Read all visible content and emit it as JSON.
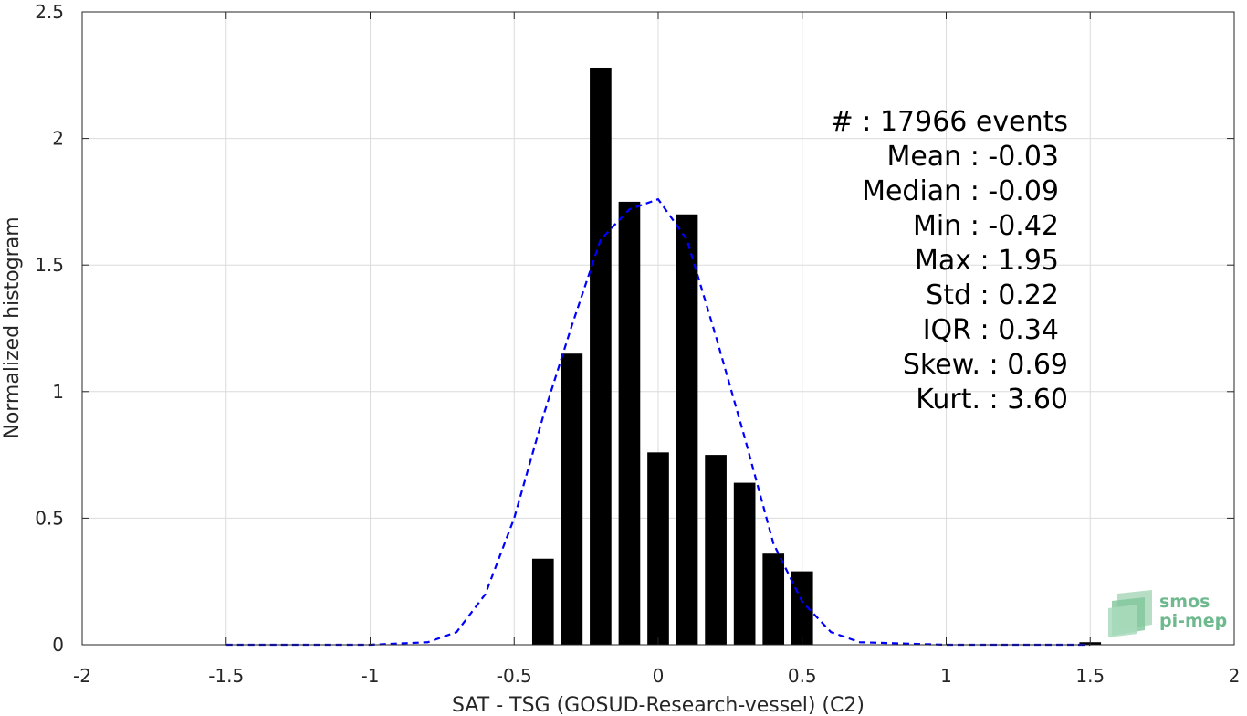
{
  "chart_data": {
    "type": "bar",
    "xlabel": "SAT - TSG (GOSUD-Research-vessel) (C2)",
    "ylabel": "Normalized histogram",
    "xlim": [
      -2,
      2
    ],
    "ylim": [
      0,
      2.5
    ],
    "xticks": [
      -2,
      -1.5,
      -1,
      -0.5,
      0,
      0.5,
      1,
      1.5,
      2
    ],
    "xtick_labels": [
      "-2",
      "-1.5",
      "-1",
      "-0.5",
      "0",
      "0.5",
      "1",
      "1.5",
      "2"
    ],
    "yticks": [
      0,
      0.5,
      1,
      1.5,
      2,
      2.5
    ],
    "ytick_labels": [
      "0",
      "0.5",
      "1",
      "1.5",
      "2",
      "2.5"
    ],
    "grid": true,
    "bar_color": "#000000",
    "bins": [
      {
        "x": -0.4,
        "value": 0.34
      },
      {
        "x": -0.3,
        "value": 1.15
      },
      {
        "x": -0.2,
        "value": 2.28
      },
      {
        "x": -0.1,
        "value": 1.75
      },
      {
        "x": 0.0,
        "value": 0.76
      },
      {
        "x": 0.1,
        "value": 1.7
      },
      {
        "x": 0.2,
        "value": 0.75
      },
      {
        "x": 0.3,
        "value": 0.64
      },
      {
        "x": 0.4,
        "value": 0.36
      },
      {
        "x": 0.5,
        "value": 0.29
      },
      {
        "x": 1.5,
        "value": 0.01
      }
    ],
    "fit_curve": {
      "style": "dashed",
      "color": "#0000ff",
      "points": [
        [
          -1.5,
          0.0
        ],
        [
          -1.0,
          0.0
        ],
        [
          -0.8,
          0.01
        ],
        [
          -0.7,
          0.05
        ],
        [
          -0.6,
          0.2
        ],
        [
          -0.5,
          0.5
        ],
        [
          -0.4,
          0.9
        ],
        [
          -0.3,
          1.26
        ],
        [
          -0.2,
          1.6
        ],
        [
          -0.1,
          1.72
        ],
        [
          0.0,
          1.76
        ],
        [
          0.1,
          1.6
        ],
        [
          0.2,
          1.22
        ],
        [
          0.3,
          0.82
        ],
        [
          0.4,
          0.4
        ],
        [
          0.5,
          0.17
        ],
        [
          0.6,
          0.05
        ],
        [
          0.7,
          0.01
        ],
        [
          1.0,
          0.0
        ],
        [
          1.5,
          0.0
        ]
      ]
    },
    "annotations": [
      "#  : 17966 events",
      "Mean : -0.03",
      "Median : -0.09",
      "Min : -0.42",
      "Max : 1.95",
      "Std : 0.22",
      "IQR : 0.34",
      "Skew. : 0.69",
      "Kurt. : 3.60"
    ]
  },
  "logo": {
    "line1": "smos",
    "line2": "pi-mep"
  }
}
